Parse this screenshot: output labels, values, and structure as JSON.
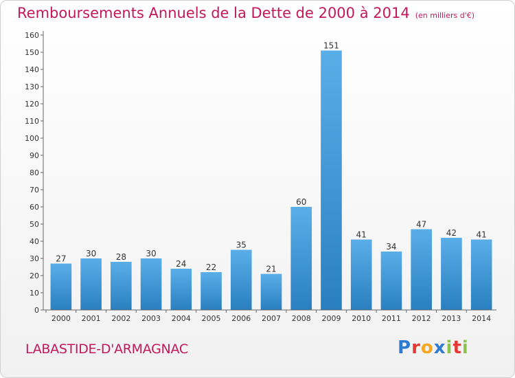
{
  "header": {
    "title": "Remboursements Annuels de la Dette de 2000 à 2014",
    "unit": "(en milliers d'€)"
  },
  "footer": {
    "city": "LABASTIDE-D'ARMAGNAC",
    "logo_letters": [
      "P",
      "r",
      "o",
      "x",
      "i",
      "t",
      "i"
    ],
    "logo_colors": [
      "#2e7bd1",
      "#e53935",
      "#f5a623",
      "#2e7bd1",
      "#8bc34a",
      "#e53935",
      "#8bc34a"
    ]
  },
  "chart_data": {
    "type": "bar",
    "title": "Remboursements Annuels de la Dette de 2000 à 2014",
    "subtitle": "(en milliers d'€)",
    "xlabel": "",
    "ylabel": "",
    "categories": [
      "2000",
      "2001",
      "2002",
      "2003",
      "2004",
      "2005",
      "2006",
      "2007",
      "2008",
      "2009",
      "2010",
      "2011",
      "2012",
      "2013",
      "2014"
    ],
    "values": [
      27,
      30,
      28,
      30,
      24,
      22,
      35,
      21,
      60,
      151,
      41,
      34,
      47,
      42,
      41
    ],
    "ylim": [
      0,
      160
    ],
    "yticks": [
      0,
      10,
      20,
      30,
      40,
      50,
      60,
      70,
      80,
      90,
      100,
      110,
      120,
      130,
      140,
      150,
      160
    ],
    "grid": false,
    "legend": "none",
    "bar_color_top": "#5aaee8",
    "bar_color_bottom": "#2a7fc0",
    "axis_color": "#666666"
  }
}
